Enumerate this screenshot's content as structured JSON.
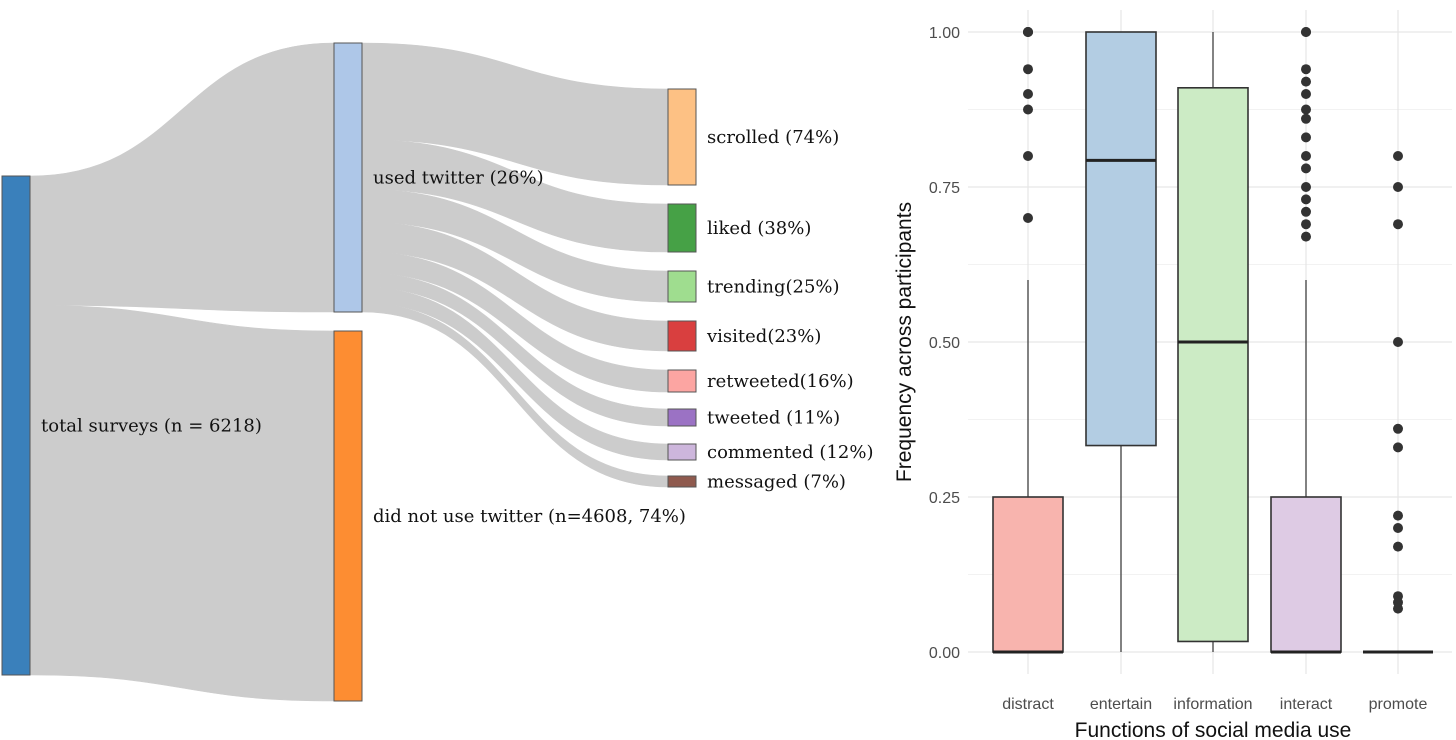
{
  "chart_data": [
    {
      "type": "sankey",
      "nodes": [
        {
          "id": "total",
          "label": "total surveys (n = 6218)",
          "value": 6218,
          "color": "#3a80bb"
        },
        {
          "id": "used",
          "label": "used twitter (26%)",
          "value": 1610,
          "color": "#aec7e8"
        },
        {
          "id": "notused",
          "label": "did not use twitter (n=4608, 74%)",
          "value": 4608,
          "color": "#fd8d32"
        },
        {
          "id": "scrolled",
          "label": "scrolled (74%)",
          "value": 1191,
          "color": "#fdc184"
        },
        {
          "id": "liked",
          "label": "liked (38%)",
          "value": 612,
          "color": "#46a146"
        },
        {
          "id": "trending",
          "label": "trending(25%)",
          "value": 403,
          "color": "#9fdd8f"
        },
        {
          "id": "visited",
          "label": "visited(23%)",
          "value": 370,
          "color": "#d93f3f"
        },
        {
          "id": "retweeted",
          "label": "retweeted(16%)",
          "value": 258,
          "color": "#fca5a2"
        },
        {
          "id": "tweeted",
          "label": "tweeted (11%)",
          "value": 177,
          "color": "#9b72c4"
        },
        {
          "id": "commented",
          "label": "commented (12%)",
          "value": 193,
          "color": "#cdb6dc"
        },
        {
          "id": "messaged",
          "label": "messaged (7%)",
          "value": 113,
          "color": "#8f5a4e"
        }
      ],
      "links": [
        {
          "source": "total",
          "target": "used",
          "value": 1610
        },
        {
          "source": "total",
          "target": "notused",
          "value": 4608
        },
        {
          "source": "used",
          "target": "scrolled",
          "value": 1191
        },
        {
          "source": "used",
          "target": "liked",
          "value": 612
        },
        {
          "source": "used",
          "target": "trending",
          "value": 403
        },
        {
          "source": "used",
          "target": "visited",
          "value": 370
        },
        {
          "source": "used",
          "target": "retweeted",
          "value": 258
        },
        {
          "source": "used",
          "target": "tweeted",
          "value": 177
        },
        {
          "source": "used",
          "target": "commented",
          "value": 193
        },
        {
          "source": "used",
          "target": "messaged",
          "value": 113
        }
      ],
      "link_color": "#cccccc"
    },
    {
      "type": "boxplot",
      "xlabel": "Functions of social media use",
      "ylabel": "Frequency across participants",
      "ylim": [
        0,
        1
      ],
      "yticks": [
        0,
        0.25,
        0.5,
        0.75,
        1
      ],
      "ytick_labels": [
        "0.00",
        "0.25",
        "0.50",
        "0.75",
        "1.00"
      ],
      "grid": true,
      "categories": [
        "distract",
        "entertain",
        "information",
        "interact",
        "promote"
      ],
      "boxes": [
        {
          "category": "distract",
          "color": "#f8b4ae",
          "whisker_low": 0,
          "q1": 0,
          "median": 0,
          "q3": 0.25,
          "whisker_high": 0.6,
          "outliers": [
            1.0,
            1.0,
            1.0,
            0.94,
            0.9,
            0.875,
            0.8,
            0.7
          ]
        },
        {
          "category": "entertain",
          "color": "#b3cde3",
          "whisker_low": 0,
          "q1": 0.333,
          "median": 0.793,
          "q3": 1.0,
          "whisker_high": 1.0,
          "outliers": []
        },
        {
          "category": "information",
          "color": "#ccebc5",
          "whisker_low": 0,
          "q1": 0.017,
          "median": 0.5,
          "q3": 0.91,
          "whisker_high": 1.0,
          "outliers": []
        },
        {
          "category": "interact",
          "color": "#decbe4",
          "whisker_low": 0,
          "q1": 0,
          "median": 0,
          "q3": 0.25,
          "whisker_high": 0.6,
          "outliers": [
            1.0,
            1.0,
            0.94,
            0.92,
            0.9,
            0.875,
            0.86,
            0.83,
            0.8,
            0.78,
            0.75,
            0.73,
            0.71,
            0.69,
            0.67
          ]
        },
        {
          "category": "promote",
          "color": "#ffffff",
          "whisker_low": 0,
          "q1": 0,
          "median": 0,
          "q3": 0,
          "whisker_high": 0,
          "outliers": [
            0.8,
            0.75,
            0.69,
            0.5,
            0.36,
            0.33,
            0.22,
            0.2,
            0.17,
            0.09,
            0.08,
            0.07
          ]
        }
      ]
    }
  ]
}
